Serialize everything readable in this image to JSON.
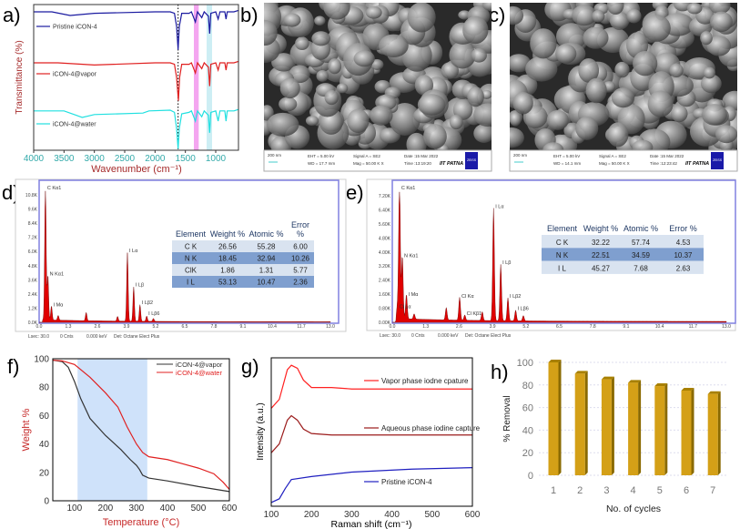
{
  "panel_labels": {
    "a": "a)",
    "b": "b)",
    "c": "c)",
    "d": "d)",
    "e": "e)",
    "f": "f)",
    "g": "g)",
    "h": "h)"
  },
  "colors": {
    "pristine": "#1a1aa0",
    "vapor": "#e02020",
    "water": "#20e0e0",
    "aqueous": "#9b1b1b",
    "raman_pristine": "#1f1fc0",
    "tga_vapor": "#333333",
    "tga_water": "#e02020",
    "eds_fill": "#e00000",
    "bar": "#d4a017",
    "highlight_pink": "#f4a6f0",
    "highlight_cyan": "#cdeef4",
    "shade_blue": "#cfe2fa"
  },
  "sem": [
    {
      "scale": "200 nm",
      "eht": "EHT = 5.00 kV",
      "wd": "WD = 17.7 mm",
      "signal": "Signal A = SE2",
      "mag": "Mag = 50.00 K X",
      "date": "Date :15 Mar 2022",
      "time": "Time :13:19:20",
      "inst": "IIT PATNA",
      "logo": "ZEISS"
    },
    {
      "scale": "200 nm",
      "eht": "EHT = 5.00 kV",
      "wd": "WD = 14.1 mm",
      "signal": "Signal A = SE2",
      "mag": "Mag = 50.00 K X",
      "date": "Date :15 Mar 2022",
      "time": "Time :12:23:42",
      "inst": "IIT PATNA",
      "logo": "ZEISS"
    }
  ],
  "eds": [
    {
      "footer": [
        "Lsec: 30.0",
        "0 Cnts",
        "0.000 keV",
        "Det: Octane Elect Plus"
      ],
      "table": {
        "headers": [
          "Element",
          "Weight %",
          "Atomic %",
          "Error %"
        ],
        "rows": [
          [
            "C K",
            "26.56",
            "55.28",
            "6.00"
          ],
          [
            "N K",
            "18.45",
            "32.94",
            "10.26"
          ],
          [
            "ClK",
            "1.86",
            "1.31",
            "5.77"
          ],
          [
            "I L",
            "53.13",
            "10.47",
            "2.36"
          ]
        ]
      }
    },
    {
      "footer": [
        "Lsec: 30.0",
        "0 Cnts",
        "0.000 keV",
        "Det: Octane Elect Plus"
      ],
      "table": {
        "headers": [
          "Element",
          "Weight %",
          "Atomic %",
          "Error %"
        ],
        "rows": [
          [
            "C K",
            "32.22",
            "57.74",
            "4.53"
          ],
          [
            "N K",
            "22.51",
            "34.59",
            "10.37"
          ],
          [
            "I L",
            "45.27",
            "7.68",
            "2.63"
          ]
        ]
      }
    }
  ],
  "chart_data": [
    {
      "panel": "a",
      "type": "line",
      "xlabel": "Wavenumber (cm⁻¹)",
      "ylabel": "Transmittance (%)",
      "xlim": [
        4000,
        625
      ],
      "x_reversed": true,
      "xticks": [
        4000,
        3500,
        3000,
        2500,
        2000,
        1500,
        1000
      ],
      "highlights": [
        {
          "range": [
            1360,
            1280
          ],
          "color": "#f4a6f0"
        },
        {
          "range": [
            1150,
            1060
          ],
          "color": "#cdeef4"
        }
      ],
      "dotted_line_at": 1620,
      "series": [
        {
          "name": "Pristine iCON-4",
          "color": "#1a1aa0",
          "points": [
            [
              4000,
              95
            ],
            [
              3700,
              95
            ],
            [
              3400,
              92.5
            ],
            [
              3000,
              94
            ],
            [
              2000,
              95
            ],
            [
              1750,
              95
            ],
            [
              1680,
              94
            ],
            [
              1645,
              85
            ],
            [
              1620,
              69
            ],
            [
              1600,
              85
            ],
            [
              1560,
              94
            ],
            [
              1440,
              94
            ],
            [
              1400,
              95
            ],
            [
              1335,
              88
            ],
            [
              1300,
              95
            ],
            [
              1230,
              91
            ],
            [
              1190,
              95
            ],
            [
              1120,
              92
            ],
            [
              1100,
              80
            ],
            [
              1080,
              94
            ],
            [
              1000,
              95
            ],
            [
              960,
              90
            ],
            [
              930,
              95
            ],
            [
              850,
              95
            ],
            [
              830,
              90
            ],
            [
              810,
              95
            ],
            [
              700,
              95
            ],
            [
              625,
              96
            ]
          ]
        },
        {
          "name": "iCON-4@vapor",
          "color": "#e02020",
          "points": [
            [
              4000,
              60
            ],
            [
              3600,
              60
            ],
            [
              3000,
              58.5
            ],
            [
              2000,
              60
            ],
            [
              1750,
              60
            ],
            [
              1680,
              59
            ],
            [
              1645,
              50
            ],
            [
              1615,
              34
            ],
            [
              1595,
              50
            ],
            [
              1560,
              59
            ],
            [
              1440,
              59
            ],
            [
              1400,
              60
            ],
            [
              1335,
              53
            ],
            [
              1300,
              60
            ],
            [
              1230,
              56
            ],
            [
              1190,
              60
            ],
            [
              1120,
              57
            ],
            [
              1100,
              44
            ],
            [
              1080,
              59
            ],
            [
              1000,
              60
            ],
            [
              960,
              55
            ],
            [
              930,
              60
            ],
            [
              850,
              60
            ],
            [
              830,
              55
            ],
            [
              810,
              60
            ],
            [
              700,
              60
            ],
            [
              625,
              61
            ]
          ]
        },
        {
          "name": "iCON-4@water",
          "color": "#20e0e0",
          "points": [
            [
              4000,
              27
            ],
            [
              3500,
              27
            ],
            [
              3300,
              24
            ],
            [
              3200,
              22.5
            ],
            [
              3000,
              24.5
            ],
            [
              2200,
              25.5
            ],
            [
              2100,
              27
            ],
            [
              1750,
              27.5
            ],
            [
              1680,
              26
            ],
            [
              1645,
              15
            ],
            [
              1620,
              1
            ],
            [
              1600,
              15
            ],
            [
              1560,
              25
            ],
            [
              1440,
              26
            ],
            [
              1400,
              27
            ],
            [
              1335,
              20
            ],
            [
              1300,
              27
            ],
            [
              1230,
              23
            ],
            [
              1190,
              27
            ],
            [
              1120,
              24
            ],
            [
              1100,
              12
            ],
            [
              1080,
              26
            ],
            [
              1000,
              27
            ],
            [
              960,
              20
            ],
            [
              930,
              27
            ],
            [
              850,
              27
            ],
            [
              830,
              20
            ],
            [
              810,
              27
            ],
            [
              700,
              27
            ],
            [
              625,
              28
            ]
          ]
        }
      ]
    },
    {
      "panel": "d",
      "type": "area",
      "xlabel": "keV",
      "xlim": [
        0,
        13
      ],
      "ylim": [
        0,
        10.8
      ],
      "yunit": "K counts",
      "xticks": [
        "0.0",
        "1.3",
        "2.6",
        "3.9",
        "5.2",
        "6.5",
        "7.8",
        "9.1",
        "10.4",
        "11.7",
        "13.0"
      ],
      "yticks": [
        "0.0K",
        "1.2K",
        "2.4K",
        "3.6K",
        "4.8K",
        "6.0K",
        "7.2K",
        "8.4K",
        "9.6K",
        "10.8K"
      ],
      "peaks": [
        {
          "x": 0.28,
          "y": 11.5,
          "label": "C Kα1"
        },
        {
          "x": 0.39,
          "y": 3.8,
          "label": "N Kα1"
        },
        {
          "x": 0.55,
          "y": 1.2,
          "label": "I Mα"
        },
        {
          "x": 0.85,
          "y": 0.4,
          "label": ""
        },
        {
          "x": 2.1,
          "y": 0.7,
          "label": ""
        },
        {
          "x": 3.5,
          "y": 0.4,
          "label": ""
        },
        {
          "x": 3.94,
          "y": 5.8,
          "label": "I Lα"
        },
        {
          "x": 4.22,
          "y": 2.9,
          "label": "I Lβ"
        },
        {
          "x": 4.5,
          "y": 1.4,
          "label": "I Lβ2"
        },
        {
          "x": 4.8,
          "y": 0.45,
          "label": "I Lβ6"
        },
        {
          "x": 5.1,
          "y": 0.25,
          "label": ""
        }
      ]
    },
    {
      "panel": "e",
      "type": "area",
      "xlabel": "keV",
      "xlim": [
        0,
        13
      ],
      "ylim": [
        0,
        7.2
      ],
      "yunit": "K counts",
      "xticks": [
        "0.0",
        "1.3",
        "2.6",
        "3.9",
        "5.2",
        "6.5",
        "7.8",
        "9.1",
        "10.4",
        "11.7",
        "13.0"
      ],
      "yticks": [
        "0.00K",
        "0.80K",
        "1.60K",
        "2.40K",
        "3.20K",
        "4.00K",
        "4.80K",
        "5.60K",
        "6.40K",
        "7.20K"
      ],
      "peaks": [
        {
          "x": 0.28,
          "y": 7.8,
          "label": "C Kα1"
        },
        {
          "x": 0.39,
          "y": 3.6,
          "label": "N Kα1"
        },
        {
          "x": 0.55,
          "y": 1.4,
          "label": "I Mα"
        },
        {
          "x": 0.2,
          "y": 0.7,
          "label": "Cl Lα"
        },
        {
          "x": 0.85,
          "y": 0.3,
          "label": ""
        },
        {
          "x": 2.1,
          "y": 0.7,
          "label": ""
        },
        {
          "x": 2.62,
          "y": 1.3,
          "label": "Cl Kα"
        },
        {
          "x": 2.82,
          "y": 0.3,
          "label": "Cl Kβ1"
        },
        {
          "x": 3.5,
          "y": 0.5,
          "label": ""
        },
        {
          "x": 3.94,
          "y": 6.4,
          "label": "I Lα"
        },
        {
          "x": 4.22,
          "y": 3.2,
          "label": "I Lβ"
        },
        {
          "x": 4.5,
          "y": 1.3,
          "label": "I Lβ2"
        },
        {
          "x": 4.8,
          "y": 0.6,
          "label": "I Lβ6"
        },
        {
          "x": 5.1,
          "y": 0.3,
          "label": ""
        }
      ]
    },
    {
      "panel": "f",
      "type": "line",
      "xlabel": "Temperature (°C)",
      "ylabel": "Weight %",
      "xlim": [
        30,
        600
      ],
      "ylim": [
        0,
        100
      ],
      "xticks": [
        100,
        200,
        300,
        400,
        500,
        600
      ],
      "yticks": [
        0,
        20,
        40,
        60,
        80,
        100
      ],
      "shaded_range": [
        110,
        335
      ],
      "legend": "top-right",
      "series": [
        {
          "name": "iCON-4@vapor",
          "color": "#333333",
          "points": [
            [
              30,
              99
            ],
            [
              60,
              98
            ],
            [
              80,
              94
            ],
            [
              100,
              84
            ],
            [
              120,
              72
            ],
            [
              150,
              58
            ],
            [
              200,
              46
            ],
            [
              250,
              36
            ],
            [
              280,
              29
            ],
            [
              300,
              25
            ],
            [
              310,
              22
            ],
            [
              320,
              18
            ],
            [
              340,
              16
            ],
            [
              400,
              14
            ],
            [
              500,
              10
            ],
            [
              600,
              6.5
            ]
          ]
        },
        {
          "name": "iCON-4@water",
          "color": "#e02020",
          "points": [
            [
              30,
              99
            ],
            [
              60,
              98.5
            ],
            [
              100,
              96
            ],
            [
              150,
              87
            ],
            [
              200,
              76
            ],
            [
              240,
              66
            ],
            [
              270,
              52
            ],
            [
              300,
              40
            ],
            [
              320,
              34
            ],
            [
              340,
              31
            ],
            [
              400,
              29
            ],
            [
              450,
              26
            ],
            [
              500,
              23
            ],
            [
              550,
              19
            ],
            [
              580,
              13
            ],
            [
              600,
              8
            ]
          ]
        }
      ]
    },
    {
      "panel": "g",
      "type": "line",
      "xlabel": "Raman shift (cm⁻¹)",
      "ylabel": "Intensity (a.u.)",
      "xlim": [
        100,
        600
      ],
      "ylim": [
        0,
        100
      ],
      "xticks": [
        100,
        200,
        300,
        400,
        500,
        600
      ],
      "series": [
        {
          "name": "Vapor phase iodne cpature",
          "color": "#ff2020",
          "points": [
            [
              100,
              66
            ],
            [
              120,
              72
            ],
            [
              140,
              92
            ],
            [
              150,
              95
            ],
            [
              165,
              93
            ],
            [
              180,
              85
            ],
            [
              200,
              80
            ],
            [
              250,
              80
            ],
            [
              300,
              79
            ],
            [
              600,
              79
            ]
          ]
        },
        {
          "name": "Aqueous phase iodine capture",
          "color": "#9b1b1b",
          "points": [
            [
              100,
              36
            ],
            [
              120,
              42
            ],
            [
              140,
              58
            ],
            [
              150,
              61
            ],
            [
              165,
              58
            ],
            [
              180,
              52
            ],
            [
              200,
              49
            ],
            [
              250,
              48
            ],
            [
              600,
              48
            ]
          ]
        },
        {
          "name": "Pristine iCON-4",
          "color": "#1f1fc0",
          "points": [
            [
              100,
              2.5
            ],
            [
              120,
              5
            ],
            [
              135,
              12
            ],
            [
              150,
              18
            ],
            [
              200,
              20
            ],
            [
              300,
              23
            ],
            [
              450,
              25
            ],
            [
              600,
              26
            ]
          ]
        }
      ]
    },
    {
      "panel": "h",
      "type": "bar",
      "xlabel": "No. of cycles",
      "ylabel": "% Removal",
      "ylim": [
        0,
        100
      ],
      "yticks": [
        0,
        20,
        40,
        60,
        80,
        100
      ],
      "categories": [
        "1",
        "2",
        "3",
        "4",
        "5",
        "6",
        "7"
      ],
      "values": [
        100,
        90,
        85,
        82,
        79,
        75,
        72
      ]
    }
  ]
}
